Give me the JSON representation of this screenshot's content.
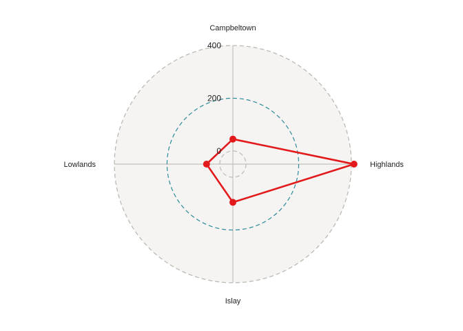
{
  "chart_data": {
    "type": "radar",
    "title": "",
    "categories": [
      "Campbeltown",
      "Highlands",
      "Islay",
      "Lowlands"
    ],
    "series": [
      {
        "values": [
          45,
          410,
          95,
          50
        ],
        "color": "#e31a1c"
      }
    ],
    "rlim": [
      -50,
      400
    ],
    "rticks": [
      0,
      200,
      400
    ],
    "rtick_labels": [
      "0",
      "200",
      "400"
    ],
    "grid": true,
    "colors": {
      "background": "#f5f4f2",
      "outer_ring": "#bdb9b3",
      "ring_0": "#bdb9b3",
      "ring_200": "#2a8a9a",
      "spokes": "#c4c1bc",
      "series": "#e31a1c"
    }
  }
}
